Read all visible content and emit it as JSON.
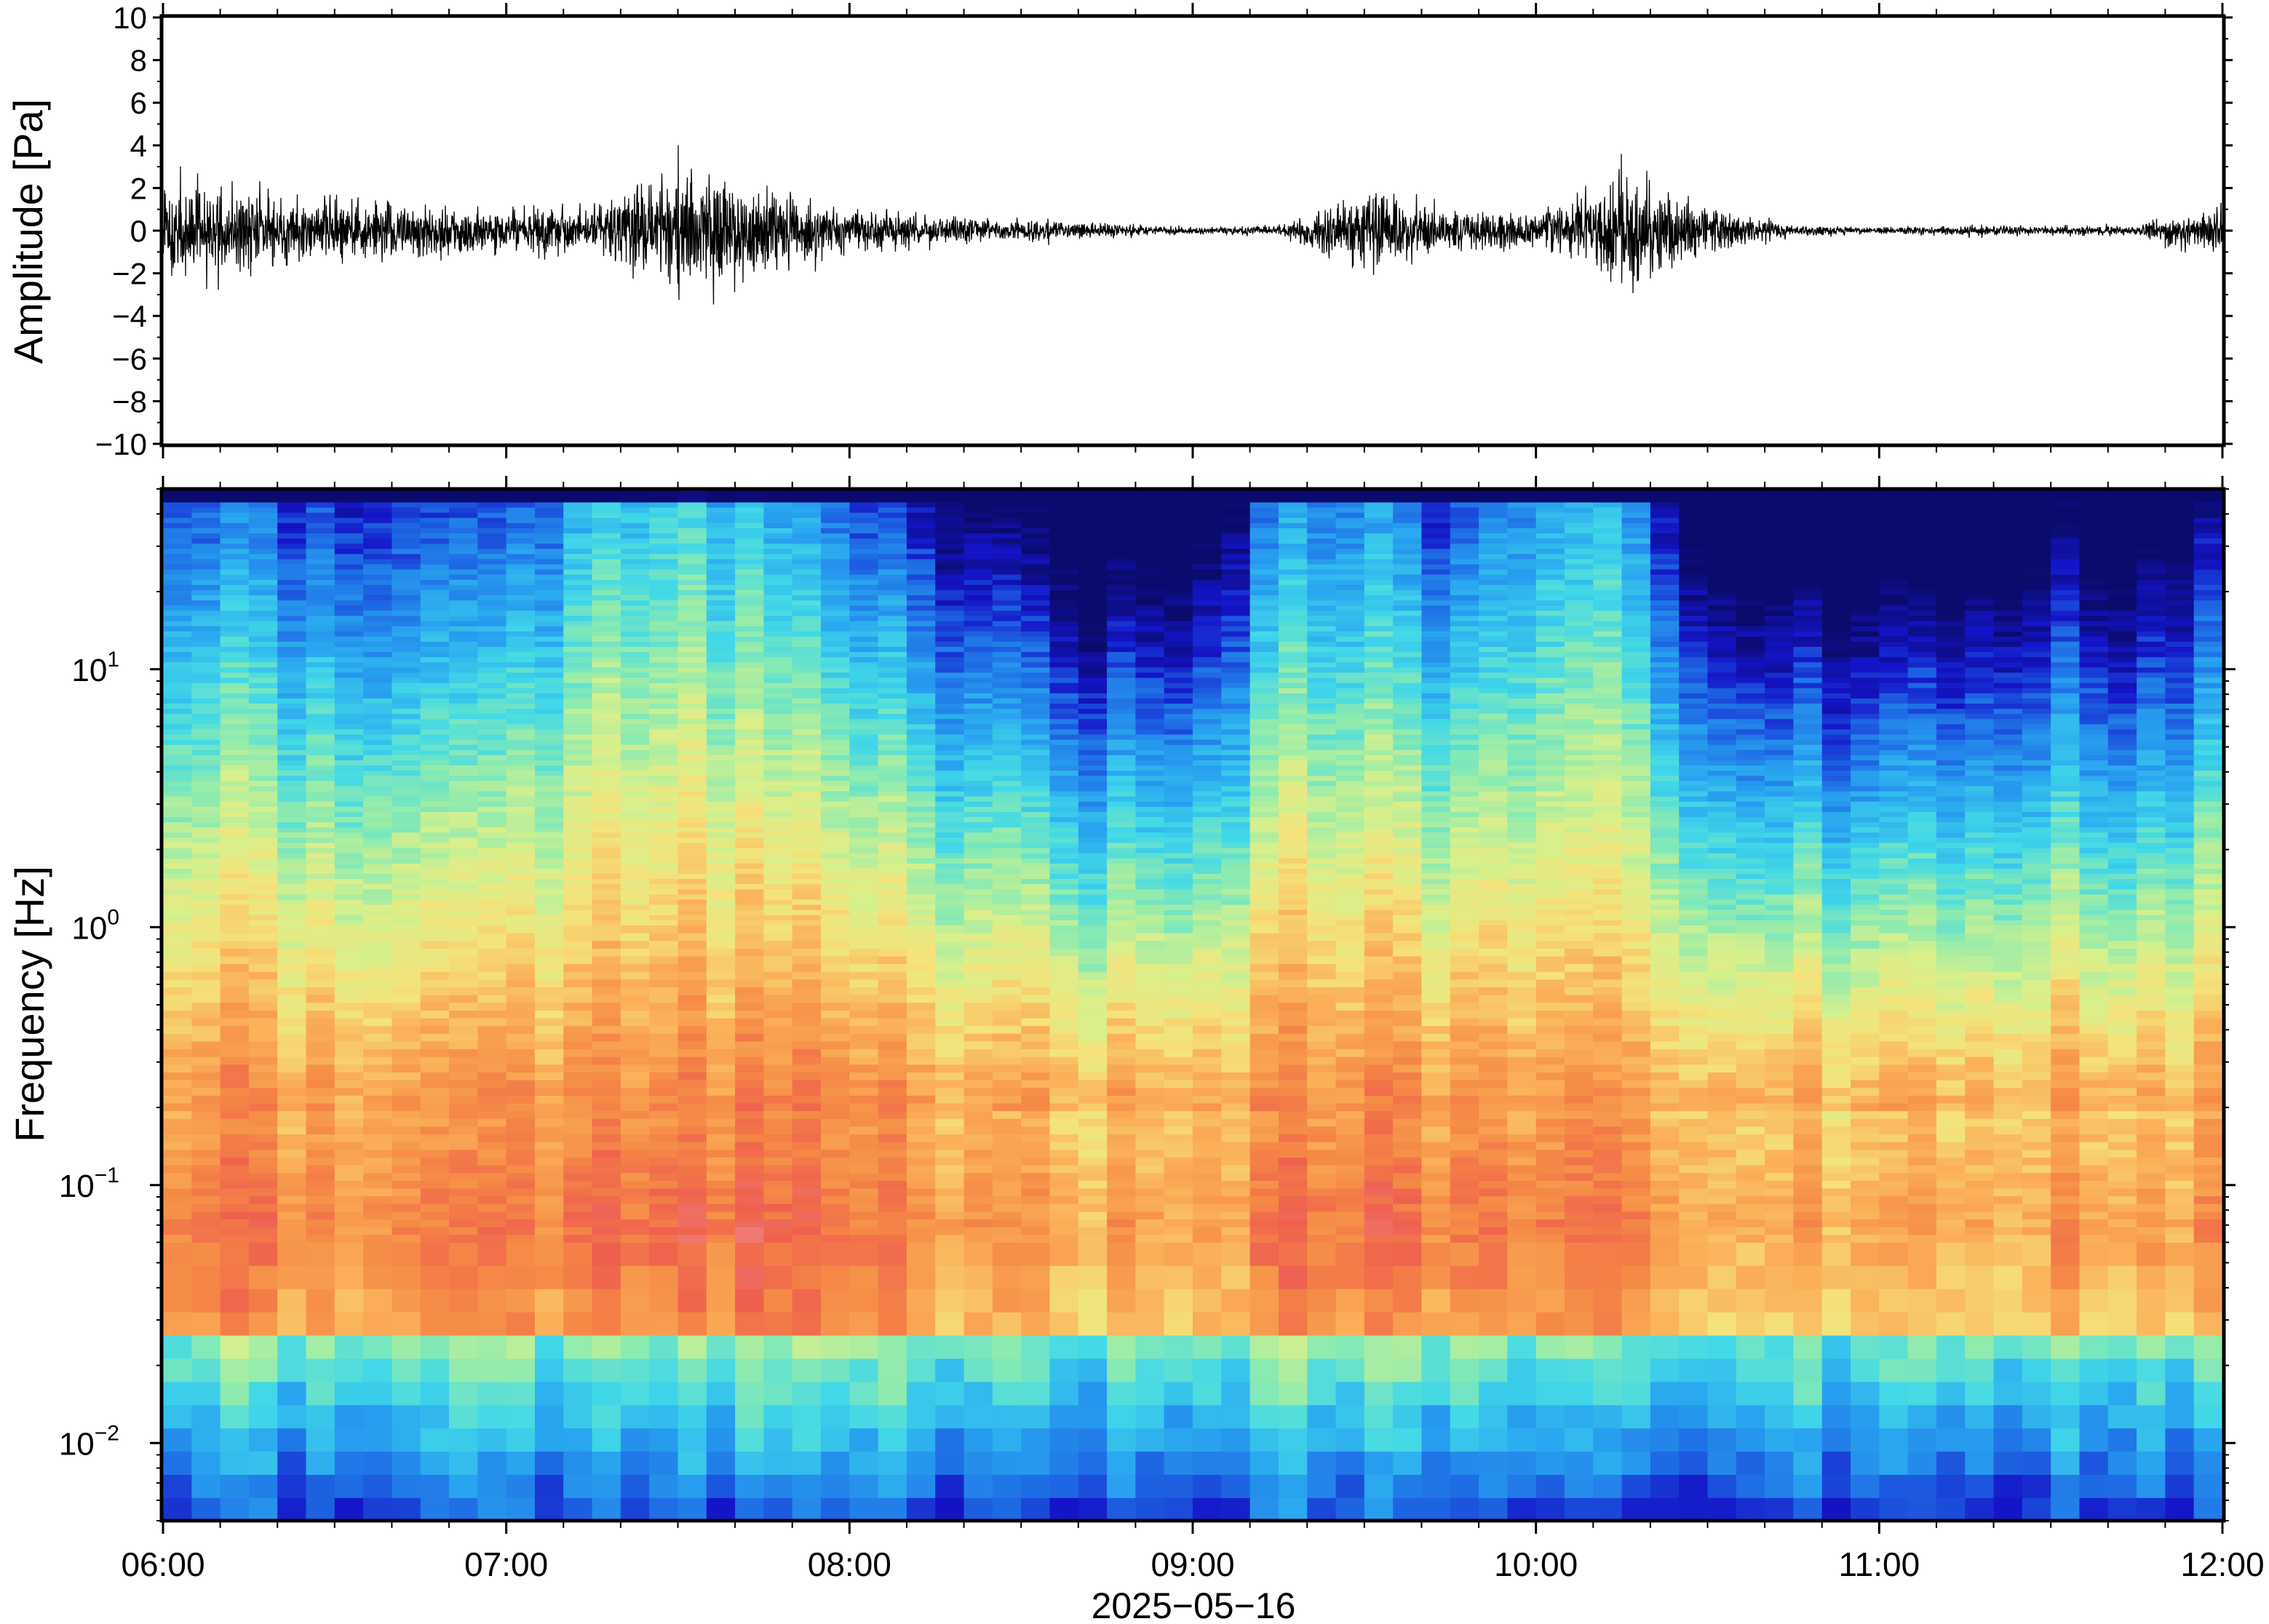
{
  "chart_data": [
    {
      "type": "line",
      "panel": "waveform",
      "ylabel": "Amplitude [Pa]",
      "xlabel": "",
      "ylim": [
        -10,
        10
      ],
      "xlim": [
        "06:00",
        "12:00"
      ],
      "y_ticks": [
        {
          "value": 10,
          "label": "10"
        },
        {
          "value": 8,
          "label": "8"
        },
        {
          "value": 6,
          "label": "6"
        },
        {
          "value": 4,
          "label": "4"
        },
        {
          "value": 2,
          "label": "2"
        },
        {
          "value": 0,
          "label": "0"
        },
        {
          "value": -2,
          "label": "−2"
        },
        {
          "value": -4,
          "label": "−4"
        },
        {
          "value": -6,
          "label": "−6"
        },
        {
          "value": -8,
          "label": "−8"
        },
        {
          "value": -10,
          "label": "−10"
        }
      ],
      "grid": false,
      "series": [
        {
          "color": "#000000",
          "envelope_hours": [
            6.0,
            6.25,
            6.5,
            6.75,
            7.0,
            7.25,
            7.5,
            7.75,
            8.0,
            8.25,
            8.5,
            8.75,
            9.0,
            9.25,
            9.5,
            9.75,
            10.0,
            10.25,
            10.5,
            10.75,
            11.0,
            11.25,
            11.5,
            11.75,
            12.0
          ],
          "envelope_amplitude": [
            2.6,
            2.2,
            1.8,
            1.5,
            1.2,
            1.4,
            3.6,
            2.4,
            1.3,
            0.9,
            0.6,
            0.4,
            0.2,
            0.3,
            2.2,
            1.2,
            1.0,
            3.3,
            1.4,
            0.3,
            0.2,
            0.3,
            0.25,
            0.3,
            1.5
          ],
          "peak_amplitudes": [
            4.0,
            -3.8,
            4.0,
            -3.0,
            4.0,
            2.4
          ]
        }
      ]
    },
    {
      "type": "heatmap",
      "panel": "spectrogram",
      "ylabel": "Frequency [Hz]",
      "xlabel": "2025−05−16",
      "y_scale": "log",
      "ylim": [
        0.005,
        50
      ],
      "y_ticks": [
        {
          "value": 0.01,
          "base": "10",
          "exp": "−2"
        },
        {
          "value": 0.1,
          "base": "10",
          "exp": "−1"
        },
        {
          "value": 1,
          "base": "10",
          "exp": "0"
        },
        {
          "value": 10,
          "base": "10",
          "exp": "1"
        }
      ],
      "x_ticks": [
        "06:00",
        "07:00",
        "08:00",
        "09:00",
        "10:00",
        "11:00",
        "12:00"
      ],
      "xlim": [
        "06:00",
        "12:00"
      ],
      "colormap": [
        "#0b0b6e",
        "#1414c8",
        "#1f6fe6",
        "#2aa8f0",
        "#41d8e8",
        "#8cebb0",
        "#d7f08c",
        "#f5e27a",
        "#fbb058",
        "#f58a46",
        "#ef5f4e",
        "#f08a8a"
      ],
      "intensity_profile": {
        "hours": [
          6.0,
          6.5,
          7.0,
          7.25,
          7.5,
          7.75,
          8.0,
          8.25,
          8.5,
          8.75,
          9.0,
          9.25,
          9.5,
          9.75,
          10.0,
          10.25,
          10.5,
          10.75,
          11.0,
          11.25,
          11.5,
          11.75,
          12.0
        ],
        "level": [
          0.55,
          0.5,
          0.45,
          0.8,
          0.85,
          0.7,
          0.5,
          0.35,
          0.2,
          0.05,
          0.05,
          0.6,
          0.65,
          0.45,
          0.75,
          0.8,
          0.1,
          0.0,
          0.0,
          0.05,
          0.15,
          0.05,
          0.3
        ]
      }
    }
  ],
  "time_axis": {
    "date_label": "2025−05−16",
    "tick_labels": [
      "06:00",
      "07:00",
      "08:00",
      "09:00",
      "10:00",
      "11:00",
      "12:00"
    ]
  }
}
